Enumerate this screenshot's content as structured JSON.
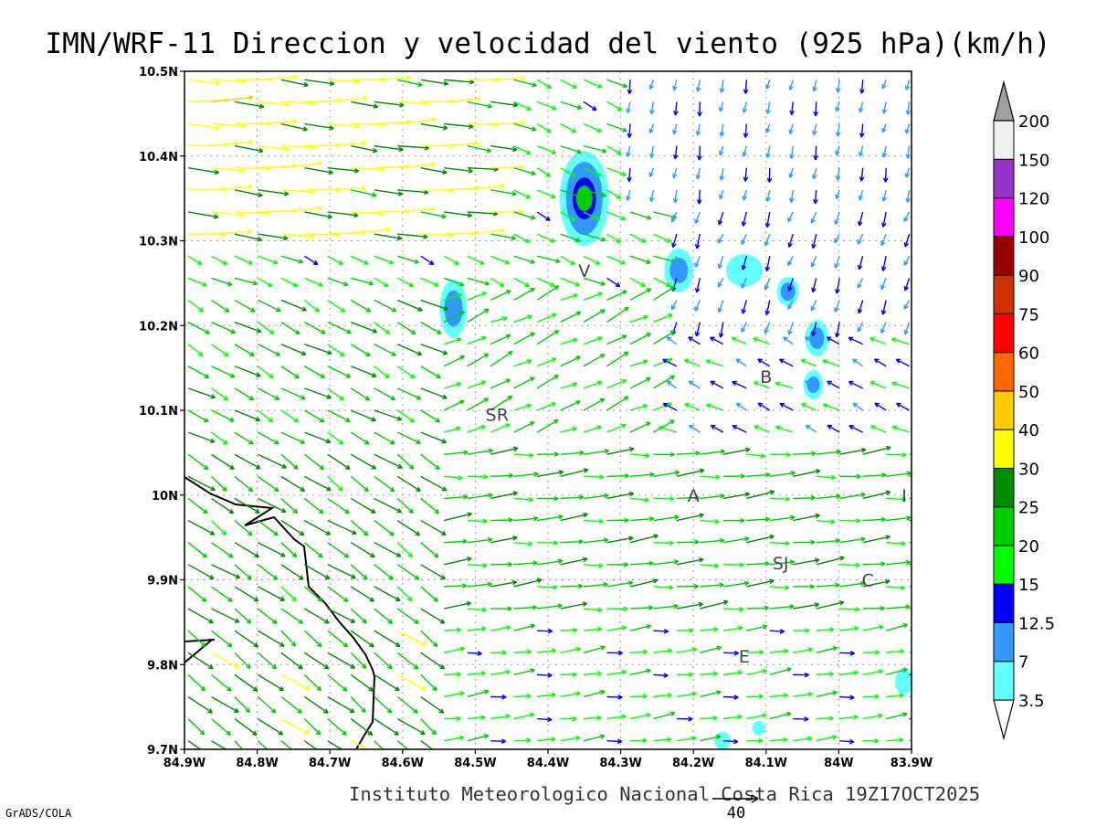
{
  "title": "IMN/WRF-11 Direccion y velocidad del viento (925 hPa)(km/h)",
  "footer": "Instituto Meteorologico Nacional Costa Rica 19Z17OCT2025",
  "software": "GrADS/COLA",
  "reference_vector": {
    "value": "40",
    "speed_kmh": 40
  },
  "chart_data": {
    "type": "vector-field-map",
    "x_axis": {
      "labels": [
        "84.9W",
        "84.8W",
        "84.7W",
        "84.6W",
        "84.5W",
        "84.4W",
        "84.3W",
        "84.2W",
        "84.1W",
        "84W",
        "83.9W"
      ],
      "range": [
        -84.9,
        -83.9
      ]
    },
    "y_axis": {
      "labels": [
        "10.5N",
        "10.4N",
        "10.3N",
        "10.2N",
        "10.1N",
        "10N",
        "9.9N",
        "9.8N",
        "9.7N"
      ],
      "range": [
        9.7,
        10.5
      ]
    },
    "grid": true,
    "legend": {
      "placement": "right",
      "levels": [
        "3.5",
        "7",
        "12.5",
        "15",
        "20",
        "25",
        "30",
        "40",
        "50",
        "60",
        "75",
        "90",
        "100",
        "120",
        "150",
        "200"
      ],
      "colors": [
        "#66ffff",
        "#3399ff",
        "#0000ff",
        "#00ff00",
        "#00cc00",
        "#008c00",
        "#ffff00",
        "#ffcc00",
        "#ff6600",
        "#ff0000",
        "#cc3300",
        "#990000",
        "#ff00ff",
        "#9933cc",
        "#f0f0f0",
        "#a0a0a0"
      ]
    },
    "place_labels": [
      {
        "label": "V",
        "lon": -84.35,
        "lat": 10.265
      },
      {
        "label": "SR",
        "lon": -84.47,
        "lat": 10.095
      },
      {
        "label": "B",
        "lon": -84.1,
        "lat": 10.14
      },
      {
        "label": "A",
        "lon": -84.2,
        "lat": 10.0
      },
      {
        "label": "I",
        "lon": -83.91,
        "lat": 10.0
      },
      {
        "label": "SJ",
        "lon": -84.08,
        "lat": 9.92
      },
      {
        "label": "C",
        "lon": -83.96,
        "lat": 9.9
      },
      {
        "label": "E",
        "lon": -84.13,
        "lat": 9.81
      }
    ]
  }
}
